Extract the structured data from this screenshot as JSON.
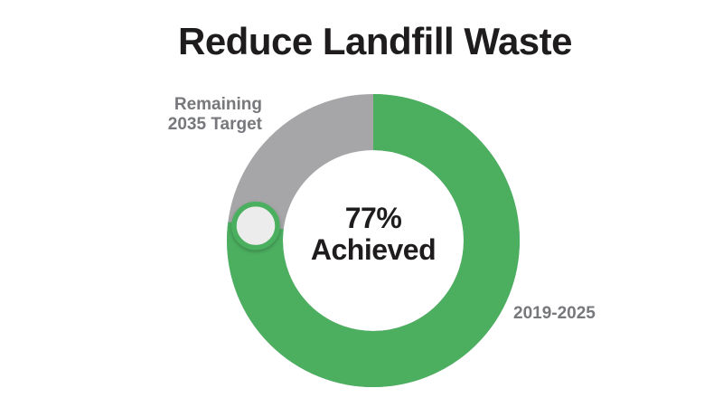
{
  "chart_data": {
    "type": "pie",
    "variant": "donut",
    "title": "Reduce Landfill Waste",
    "units": "percent",
    "start_angle_deg": 0,
    "direction": "clockwise",
    "total": 100,
    "slices": [
      {
        "name": "achieved",
        "label": "2019-2025",
        "value": 77,
        "color": "#4CAF60"
      },
      {
        "name": "remaining",
        "label": "Remaining 2035 Target",
        "label_lines": [
          "Remaining",
          "2035 Target"
        ],
        "value": 23,
        "color": "#A6A6A8"
      }
    ],
    "center_label": {
      "value": "77%",
      "caption": "Achieved",
      "color": "#1E1C1C"
    },
    "progress_marker": {
      "shape": "circle",
      "at_value": 77,
      "fill": "#ECECEC",
      "border_color": "#4CAF60"
    },
    "label_color": "#77787B",
    "legend_position": "callout-labels-beside-slices",
    "grid": false
  }
}
